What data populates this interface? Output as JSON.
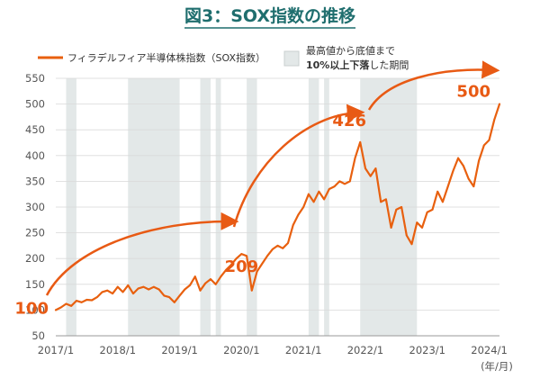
{
  "chart_data": {
    "type": "line",
    "title": "図3：SOX指数の推移",
    "legend": {
      "series_label": "フィラデルフィア半導体株指数（SOX指数）",
      "band_label_line1": "最高値から底値まで",
      "band_label_line2_bold": "10%以上下落",
      "band_label_line2_rest": "した期間",
      "placement": "top-center"
    },
    "x_tick_labels": [
      "2017/1",
      "2018/1",
      "2019/1",
      "2020/1",
      "2021/1",
      "2022/1",
      "2023/1",
      "2024/1"
    ],
    "x_unit_label": "(年/月)",
    "x_range": [
      "2017-01",
      "2024-03"
    ],
    "ylim": [
      50,
      550
    ],
    "y_ticks": [
      50,
      100,
      150,
      200,
      250,
      300,
      350,
      400,
      450,
      500,
      550
    ],
    "grid": "horizontal",
    "colors": {
      "line": "#e8600f",
      "band": "#e3e8e8",
      "title": "#1f6e6e",
      "annotation": "#e85a14"
    },
    "shaded_periods": [
      [
        "2017-03",
        "2017-04"
      ],
      [
        "2018-03",
        "2018-12"
      ],
      [
        "2019-05",
        "2019-06"
      ],
      [
        "2019-08",
        "2019-08"
      ],
      [
        "2020-02",
        "2020-03"
      ],
      [
        "2021-02",
        "2021-03"
      ],
      [
        "2021-05",
        "2021-05"
      ],
      [
        "2021-12",
        "2022-10"
      ]
    ],
    "series": [
      {
        "points": [
          [
            "2017-01",
            100
          ],
          [
            "2017-02",
            105
          ],
          [
            "2017-03",
            112
          ],
          [
            "2017-04",
            108
          ],
          [
            "2017-05",
            118
          ],
          [
            "2017-06",
            115
          ],
          [
            "2017-07",
            120
          ],
          [
            "2017-08",
            119
          ],
          [
            "2017-09",
            125
          ],
          [
            "2017-10",
            135
          ],
          [
            "2017-11",
            138
          ],
          [
            "2017-12",
            132
          ],
          [
            "2018-01",
            145
          ],
          [
            "2018-02",
            135
          ],
          [
            "2018-03",
            148
          ],
          [
            "2018-04",
            132
          ],
          [
            "2018-05",
            142
          ],
          [
            "2018-06",
            145
          ],
          [
            "2018-07",
            140
          ],
          [
            "2018-08",
            145
          ],
          [
            "2018-09",
            140
          ],
          [
            "2018-10",
            128
          ],
          [
            "2018-11",
            125
          ],
          [
            "2018-12",
            115
          ],
          [
            "2019-01",
            128
          ],
          [
            "2019-02",
            140
          ],
          [
            "2019-03",
            148
          ],
          [
            "2019-04",
            165
          ],
          [
            "2019-05",
            138
          ],
          [
            "2019-06",
            152
          ],
          [
            "2019-07",
            160
          ],
          [
            "2019-08",
            150
          ],
          [
            "2019-09",
            165
          ],
          [
            "2019-10",
            178
          ],
          [
            "2019-11",
            188
          ],
          [
            "2019-12",
            200
          ],
          [
            "2020-01",
            209
          ],
          [
            "2020-02",
            205
          ],
          [
            "2020-03",
            138
          ],
          [
            "2020-04",
            175
          ],
          [
            "2020-05",
            190
          ],
          [
            "2020-06",
            205
          ],
          [
            "2020-07",
            218
          ],
          [
            "2020-08",
            225
          ],
          [
            "2020-09",
            220
          ],
          [
            "2020-10",
            230
          ],
          [
            "2020-11",
            265
          ],
          [
            "2020-12",
            285
          ],
          [
            "2021-01",
            300
          ],
          [
            "2021-02",
            325
          ],
          [
            "2021-03",
            310
          ],
          [
            "2021-04",
            330
          ],
          [
            "2021-05",
            315
          ],
          [
            "2021-06",
            335
          ],
          [
            "2021-07",
            340
          ],
          [
            "2021-08",
            350
          ],
          [
            "2021-09",
            345
          ],
          [
            "2021-10",
            350
          ],
          [
            "2021-11",
            395
          ],
          [
            "2021-12",
            426
          ],
          [
            "2022-01",
            375
          ],
          [
            "2022-02",
            360
          ],
          [
            "2022-03",
            375
          ],
          [
            "2022-04",
            310
          ],
          [
            "2022-05",
            315
          ],
          [
            "2022-06",
            260
          ],
          [
            "2022-07",
            295
          ],
          [
            "2022-08",
            300
          ],
          [
            "2022-09",
            245
          ],
          [
            "2022-10",
            228
          ],
          [
            "2022-11",
            270
          ],
          [
            "2022-12",
            260
          ],
          [
            "2023-01",
            290
          ],
          [
            "2023-02",
            295
          ],
          [
            "2023-03",
            330
          ],
          [
            "2023-04",
            310
          ],
          [
            "2023-05",
            340
          ],
          [
            "2023-06",
            370
          ],
          [
            "2023-07",
            395
          ],
          [
            "2023-08",
            380
          ],
          [
            "2023-09",
            355
          ],
          [
            "2023-10",
            340
          ],
          [
            "2023-11",
            390
          ],
          [
            "2023-12",
            420
          ],
          [
            "2024-01",
            430
          ],
          [
            "2024-02",
            470
          ],
          [
            "2024-03",
            500
          ]
        ]
      }
    ],
    "annotations": [
      {
        "label": "100",
        "at": [
          "2017-01",
          100
        ]
      },
      {
        "label": "209",
        "at": [
          "2020-01",
          209
        ]
      },
      {
        "label": "426",
        "at": [
          "2021-12",
          426
        ]
      },
      {
        "label": "500",
        "at": [
          "2024-03",
          500
        ]
      }
    ]
  }
}
